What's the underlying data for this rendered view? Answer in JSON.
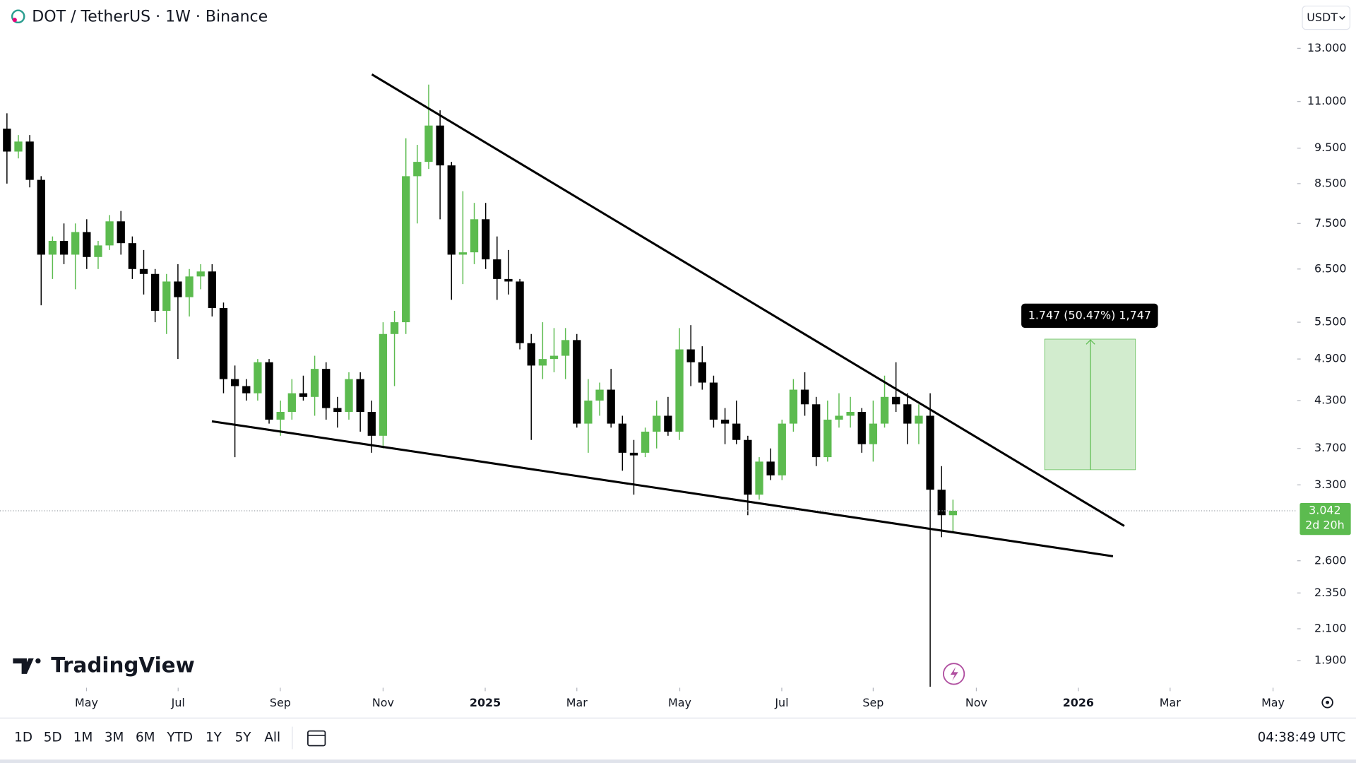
{
  "header": {
    "title": "DOT / TetherUS · 1W · Binance",
    "currency": "USDT"
  },
  "chart_data": {
    "type": "candlestick",
    "log_scale": true,
    "up_color": "#5cbb4f",
    "down_color": "#000000",
    "x": [
      0,
      1,
      2,
      3,
      4,
      5,
      6,
      7,
      8,
      9,
      10,
      11,
      12,
      13,
      14,
      15,
      16,
      17,
      18,
      19,
      20,
      21,
      22,
      23,
      24,
      25,
      26,
      27,
      28,
      29,
      30,
      31,
      32,
      33,
      34,
      35,
      36,
      37,
      38,
      39,
      40,
      41,
      42,
      43,
      44,
      45,
      46,
      47,
      48,
      49,
      50,
      51,
      52,
      53,
      54,
      55,
      56,
      57,
      58,
      59,
      60,
      61,
      62,
      63,
      64,
      65,
      66,
      67,
      68,
      69,
      70,
      71,
      72,
      73,
      74,
      75,
      76,
      77,
      78,
      79,
      80,
      81,
      82,
      83
    ],
    "open": [
      10.1,
      9.4,
      9.7,
      8.6,
      6.8,
      7.1,
      6.8,
      7.3,
      6.75,
      7.0,
      7.55,
      7.05,
      6.5,
      6.4,
      5.7,
      6.25,
      5.95,
      6.35,
      6.45,
      5.75,
      4.6,
      4.5,
      4.4,
      4.85,
      4.05,
      4.15,
      4.4,
      4.35,
      4.75,
      4.2,
      4.15,
      4.6,
      4.15,
      3.85,
      5.3,
      5.5,
      8.7,
      9.1,
      10.2,
      9.0,
      6.8,
      6.85,
      7.6,
      6.7,
      6.3,
      6.25,
      5.15,
      4.8,
      4.9,
      4.95,
      5.2,
      4.0,
      4.3,
      4.45,
      4.0,
      3.65,
      3.65,
      3.9,
      4.1,
      3.9,
      5.05,
      4.85,
      4.55,
      4.05,
      4.0,
      3.8,
      3.2,
      3.55,
      3.4,
      4.0,
      4.45,
      4.25,
      3.6,
      4.05,
      4.1,
      4.15,
      3.75,
      4.0,
      4.35,
      4.25,
      4.0,
      4.1,
      3.25,
      3.0
    ],
    "high": [
      10.6,
      9.9,
      9.9,
      8.7,
      7.2,
      7.5,
      7.5,
      7.6,
      7.1,
      7.7,
      7.8,
      7.2,
      6.9,
      6.5,
      6.4,
      6.6,
      6.5,
      6.6,
      6.6,
      5.85,
      4.8,
      4.6,
      4.9,
      4.9,
      4.3,
      4.6,
      4.65,
      4.95,
      4.85,
      4.35,
      4.7,
      4.7,
      4.3,
      5.5,
      5.7,
      9.8,
      9.6,
      11.6,
      10.7,
      9.1,
      8.3,
      8.0,
      8.0,
      7.2,
      6.9,
      6.3,
      5.3,
      5.5,
      5.4,
      5.4,
      5.3,
      4.6,
      4.55,
      4.75,
      4.1,
      3.8,
      3.95,
      4.3,
      4.35,
      5.4,
      5.45,
      5.1,
      4.65,
      4.2,
      4.3,
      3.85,
      3.6,
      3.7,
      4.05,
      4.6,
      4.7,
      4.35,
      4.3,
      4.4,
      4.35,
      4.2,
      4.3,
      4.65,
      4.85,
      4.4,
      4.25,
      4.4,
      3.5,
      3.15
    ],
    "low": [
      8.5,
      9.2,
      8.4,
      5.8,
      6.3,
      6.6,
      6.1,
      6.5,
      6.5,
      6.9,
      6.8,
      6.3,
      6.0,
      5.5,
      5.3,
      4.9,
      5.6,
      6.1,
      5.6,
      4.4,
      3.6,
      4.3,
      4.3,
      4.0,
      3.85,
      4.05,
      4.3,
      4.1,
      4.05,
      3.95,
      4.05,
      3.9,
      3.65,
      3.7,
      4.5,
      5.3,
      7.5,
      8.9,
      7.6,
      5.9,
      6.2,
      6.6,
      6.5,
      5.9,
      6.0,
      5.05,
      3.8,
      4.6,
      4.7,
      4.6,
      3.95,
      3.65,
      4.1,
      3.95,
      3.45,
      3.2,
      3.6,
      3.7,
      3.85,
      3.8,
      4.5,
      4.45,
      3.95,
      3.75,
      3.75,
      3.0,
      3.15,
      3.35,
      3.35,
      3.9,
      4.1,
      3.5,
      3.55,
      3.95,
      3.95,
      3.65,
      3.55,
      3.95,
      4.15,
      3.75,
      3.75,
      1.75,
      2.8,
      2.85
    ],
    "close": [
      9.4,
      9.7,
      8.6,
      6.8,
      7.1,
      6.8,
      7.3,
      6.75,
      7.0,
      7.55,
      7.05,
      6.5,
      6.4,
      5.7,
      6.25,
      5.95,
      6.35,
      6.45,
      5.75,
      4.6,
      4.5,
      4.4,
      4.85,
      4.05,
      4.15,
      4.4,
      4.35,
      4.75,
      4.2,
      4.15,
      4.6,
      4.15,
      3.85,
      5.3,
      5.5,
      8.7,
      9.1,
      10.2,
      9.0,
      6.8,
      6.85,
      7.6,
      6.7,
      6.3,
      6.25,
      5.15,
      4.8,
      4.9,
      4.95,
      5.2,
      4.0,
      4.3,
      4.45,
      4.0,
      3.65,
      3.62,
      3.9,
      4.1,
      3.9,
      5.05,
      4.85,
      4.55,
      4.05,
      4.0,
      3.8,
      3.2,
      3.55,
      3.4,
      4.0,
      4.45,
      4.25,
      3.6,
      4.05,
      4.1,
      4.15,
      3.75,
      4.0,
      4.35,
      4.25,
      4.0,
      4.1,
      3.25,
      3.0,
      3.042
    ],
    "xlim": [
      -0.61,
      113.2
    ],
    "xticks": [
      {
        "value": 6.98,
        "label": "May"
      },
      {
        "value": 15.02,
        "label": "Jul"
      },
      {
        "value": 23.98,
        "label": "Sep"
      },
      {
        "value": 33.0,
        "label": "Nov"
      },
      {
        "value": 41.96,
        "label": "2025"
      },
      {
        "value": 50.0,
        "label": "Mar"
      },
      {
        "value": 59.03,
        "label": "May"
      },
      {
        "value": 67.98,
        "label": "Jul"
      },
      {
        "value": 76.0,
        "label": "Sep"
      },
      {
        "value": 85.05,
        "label": "Nov"
      },
      {
        "value": 94.0,
        "label": "2026"
      },
      {
        "value": 102.05,
        "label": "Mar"
      },
      {
        "value": 111.08,
        "label": "May"
      }
    ],
    "ylim": [
      1.745,
      15.13
    ],
    "yticks": [
      {
        "value": 13,
        "label": "13.000"
      },
      {
        "value": 11,
        "label": "11.000"
      },
      {
        "value": 9.5,
        "label": "9.500"
      },
      {
        "value": 8.5,
        "label": "8.500"
      },
      {
        "value": 7.5,
        "label": "7.500"
      },
      {
        "value": 6.5,
        "label": "6.500"
      },
      {
        "value": 5.5,
        "label": "5.500"
      },
      {
        "value": 4.9,
        "label": "4.900"
      },
      {
        "value": 4.3,
        "label": "4.300"
      },
      {
        "value": 3.7,
        "label": "3.700"
      },
      {
        "value": 3.3,
        "label": "3.300"
      },
      {
        "value": 2.6,
        "label": "2.600"
      },
      {
        "value": 2.35,
        "label": "2.350"
      },
      {
        "value": 2.1,
        "label": "2.100"
      },
      {
        "value": 1.9,
        "label": "1.900"
      }
    ],
    "measure_label": "1.747 (50.47%) 1,747",
    "last_price_label": "3.042",
    "countdown": "2d 20h"
  },
  "branding": "TradingView",
  "toolbar": {
    "ranges": [
      "1D",
      "5D",
      "1M",
      "3M",
      "6M",
      "YTD",
      "1Y",
      "5Y",
      "All"
    ],
    "time": "04:38:49 UTC"
  }
}
